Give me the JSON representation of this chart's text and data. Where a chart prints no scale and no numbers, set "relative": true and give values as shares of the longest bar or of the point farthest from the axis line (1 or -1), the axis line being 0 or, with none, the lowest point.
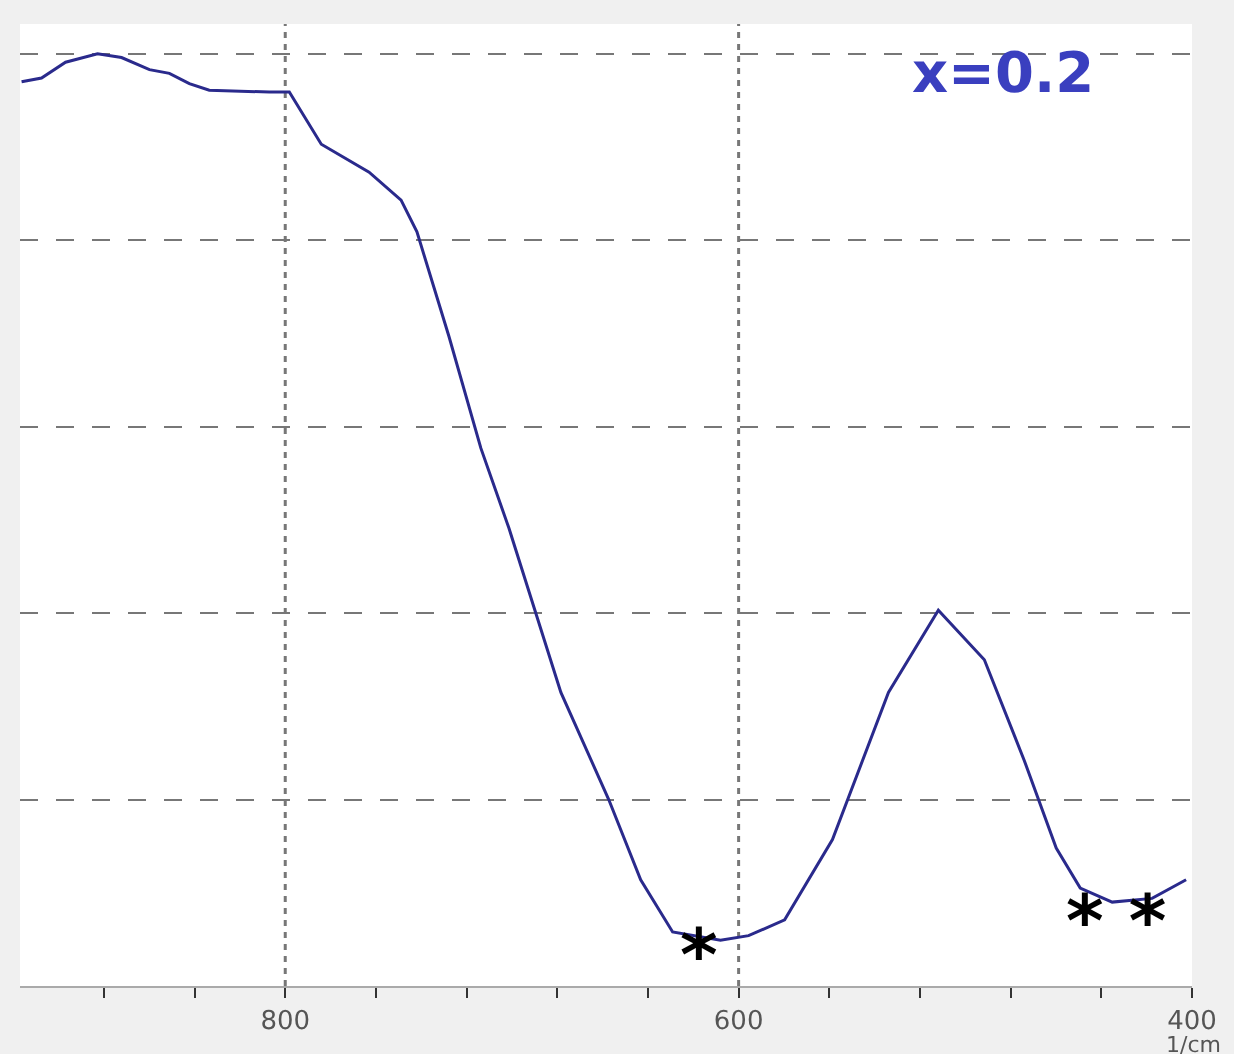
{
  "chart_data": {
    "type": "line",
    "relative": true,
    "xlabel": "1/cm",
    "x": [
      916.3,
      907.5,
      896.9,
      882.8,
      872.2,
      859.9,
      851.1,
      842.3,
      833.5,
      807,
      798.2,
      784.1,
      763,
      748.9,
      741.9,
      727.8,
      713.7,
      701.3,
      678.4,
      657.3,
      643.2,
      629.1,
      608,
      595.6,
      579.7,
      558.6,
      533.9,
      511.9,
      491.6,
      474,
      459.9,
      449.3,
      435.2,
      417.6,
      402.6
    ],
    "series": [
      {
        "color": "#2a2a8c",
        "values": [
          0.97,
          0.974,
          0.991,
          1.0,
          0.996,
          0.983,
          0.979,
          0.968,
          0.961,
          0.959,
          0.959,
          0.903,
          0.873,
          0.843,
          0.809,
          0.697,
          0.577,
          0.491,
          0.315,
          0.2,
          0.114,
          0.058,
          0.049,
          0.054,
          0.071,
          0.157,
          0.315,
          0.403,
          0.35,
          0.242,
          0.148,
          0.105,
          0.09,
          0.094,
          0.114
        ]
      }
    ],
    "xlim": [
      917,
      400
    ],
    "xticks": [
      {
        "value": 880,
        "label": null
      },
      {
        "value": 840,
        "label": null
      },
      800,
      {
        "value": 760,
        "label": null
      },
      {
        "value": 720,
        "label": null
      },
      {
        "value": 680,
        "label": null
      },
      {
        "value": 640,
        "label": null
      },
      600,
      {
        "value": 560,
        "label": null
      },
      {
        "value": 520,
        "label": null
      },
      {
        "value": 480,
        "label": null
      },
      {
        "value": 440,
        "label": null
      },
      400
    ],
    "grid": true,
    "marker": "none",
    "line_style": "solid",
    "annotations": [
      "x=0.2",
      "*",
      "* *"
    ]
  }
}
